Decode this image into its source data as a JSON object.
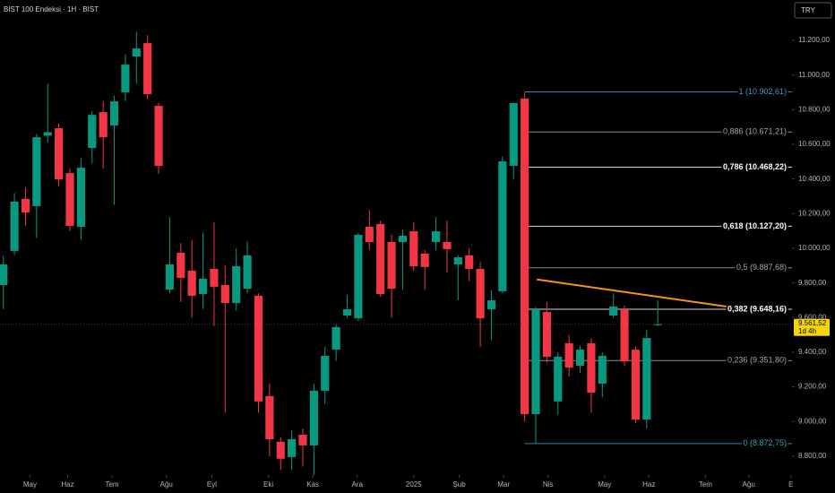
{
  "chart_data": {
    "type": "candlestick",
    "title": "BIST 100 Endeksi · 1H · BIST",
    "currency_button": "TRY",
    "up_color": "#089981",
    "down_color": "#f23645",
    "background": "#000000",
    "candles": {
      "open": [
        9788,
        9985,
        10285,
        10243,
        10650,
        10693,
        10434,
        10124,
        10579,
        10786,
        10709,
        10900,
        11107,
        11184,
        10822,
        9762,
        9974,
        9871,
        9736,
        9881,
        9788,
        9684,
        9767,
        9726,
        9147,
        8883,
        8795,
        8924,
        8862,
        9178,
        9415,
        9612,
        9596,
        10124,
        10140,
        10036,
        10036,
        10098,
        9969,
        10036,
        10036,
        9907,
        9959,
        9881,
        9648,
        9752,
        10476,
        10864,
        9043,
        9632,
        9116,
        9452,
        9322,
        9452,
        9219,
        9612,
        9648,
        9415,
        9012,
        9560
      ],
      "high": [
        9959,
        10320,
        10350,
        10660,
        10950,
        10720,
        10460,
        10520,
        10790,
        10850,
        10880,
        11120,
        11250,
        11230,
        10840,
        10180,
        10030,
        10050,
        10090,
        10150,
        9900,
        10000,
        10040,
        9740,
        9220,
        8910,
        8950,
        8960,
        9220,
        9430,
        9560,
        9730,
        10090,
        10220,
        10160,
        10080,
        10110,
        10150,
        9990,
        10180,
        10160,
        9960,
        10000,
        9920,
        9760,
        10530,
        10840,
        10902.61,
        9660,
        9690,
        9400,
        9500,
        9440,
        9480,
        9400,
        9740,
        9670,
        9430,
        9530,
        9700
      ],
      "low": [
        9648,
        9960,
        10130,
        10060,
        10610,
        10360,
        10100,
        10050,
        10490,
        10460,
        10250,
        10850,
        10950,
        10860,
        10430,
        9740,
        9690,
        9600,
        9650,
        9550,
        9050,
        9640,
        9740,
        9050,
        8800,
        8720,
        8720,
        8740,
        8690,
        9100,
        9350,
        9600,
        9580,
        9990,
        9720,
        9600,
        9760,
        9870,
        9760,
        9990,
        9860,
        9700,
        9810,
        9430,
        9470,
        9740,
        10400,
        9000,
        8872.75,
        9340,
        9040,
        9260,
        9280,
        9050,
        9140,
        9600,
        9320,
        8990,
        8960,
        9550
      ],
      "close": [
        9907,
        10269,
        10207,
        10641,
        10670,
        10398,
        10129,
        10465,
        10770,
        10641,
        10848,
        11060,
        11153,
        10890,
        10476,
        9907,
        9829,
        9726,
        9824,
        9778,
        9684,
        9897,
        9959,
        9116,
        8898,
        8785,
        8898,
        8862,
        9178,
        9379,
        9545,
        9648,
        10078,
        10036,
        9736,
        9767,
        10072,
        9896,
        9892,
        10098,
        9995,
        9948,
        9881,
        9596,
        9700,
        10502,
        10838,
        9043,
        9648,
        9374,
        9374,
        9312,
        9415,
        9167,
        9379,
        9664,
        9348,
        9012,
        9482,
        9561.52
      ]
    },
    "xlim": [
      -0.3,
      71.1
    ],
    "xticks": [
      {
        "value": 2.4,
        "label": "May"
      },
      {
        "value": 5.8,
        "label": "Haz"
      },
      {
        "value": 9.8,
        "label": "Tem"
      },
      {
        "value": 14.7,
        "label": "Ağu"
      },
      {
        "value": 18.8,
        "label": "Eyl"
      },
      {
        "value": 23.9,
        "label": "Eki"
      },
      {
        "value": 27.9,
        "label": "Kas"
      },
      {
        "value": 31.9,
        "label": "Ara"
      },
      {
        "value": 37,
        "label": "2025"
      },
      {
        "value": 41.1,
        "label": "Şub"
      },
      {
        "value": 45.1,
        "label": "Mar"
      },
      {
        "value": 49.1,
        "label": "Nis"
      },
      {
        "value": 54.2,
        "label": "May"
      },
      {
        "value": 58.2,
        "label": "Haz"
      },
      {
        "value": 63.3,
        "label": "Tem"
      },
      {
        "value": 67.2,
        "label": "Ağu"
      },
      {
        "value": 71,
        "label": "E"
      }
    ],
    "ylim": [
      8691,
      11433
    ],
    "yticks": [
      {
        "value": 8800,
        "label": "8.800,00"
      },
      {
        "value": 9000,
        "label": "9.000,00"
      },
      {
        "value": 9200,
        "label": "9.200,00"
      },
      {
        "value": 9400,
        "label": "9.400,00"
      },
      {
        "value": 9600,
        "label": "9.600,00"
      },
      {
        "value": 9800,
        "label": "9.800,00"
      },
      {
        "value": 10000,
        "label": "10.000,00"
      },
      {
        "value": 10200,
        "label": "10.200,00"
      },
      {
        "value": 10400,
        "label": "10.400,00"
      },
      {
        "value": 10600,
        "label": "10.600,00"
      },
      {
        "value": 10800,
        "label": "10.800,00"
      },
      {
        "value": 11000,
        "label": "11.000,00"
      },
      {
        "value": 11200,
        "label": "11.200,00"
      }
    ],
    "fib_levels": [
      {
        "value": 10902.61,
        "label": "1 (10.902,61)",
        "color": "#3b9fc4",
        "bold": false
      },
      {
        "value": 10671.21,
        "label": "0,886 (10.671,21)",
        "color": "#a3a6af",
        "bold": false
      },
      {
        "value": 10468.22,
        "label": "0,786 (10.468,22)",
        "color": "#ffffff",
        "bold": true
      },
      {
        "value": 10127.2,
        "label": "0,618 (10.127,20)",
        "color": "#ffffff",
        "bold": true
      },
      {
        "value": 9887.68,
        "label": "0,5 (9.887,68)",
        "color": "#a3a6af",
        "bold": false
      },
      {
        "value": 9648.16,
        "label": "0,382 (9.648,16)",
        "color": "#ffffff",
        "bold": true
      },
      {
        "value": 9351.8,
        "label": "0,236 (9.351,80)",
        "color": "#a3a6af",
        "bold": false
      },
      {
        "value": 8872.75,
        "label": "0 (8.872,75)",
        "color": "#3b9fc4",
        "bold": false
      }
    ],
    "trendline": {
      "color": "#f7931a",
      "x": [
        48.1,
        66.7
      ],
      "y": [
        9820,
        9650
      ]
    },
    "last_price": {
      "value": 9561.52,
      "label": "9.561,52",
      "countdown": "1d 4h",
      "color": "#f5d50a"
    }
  }
}
